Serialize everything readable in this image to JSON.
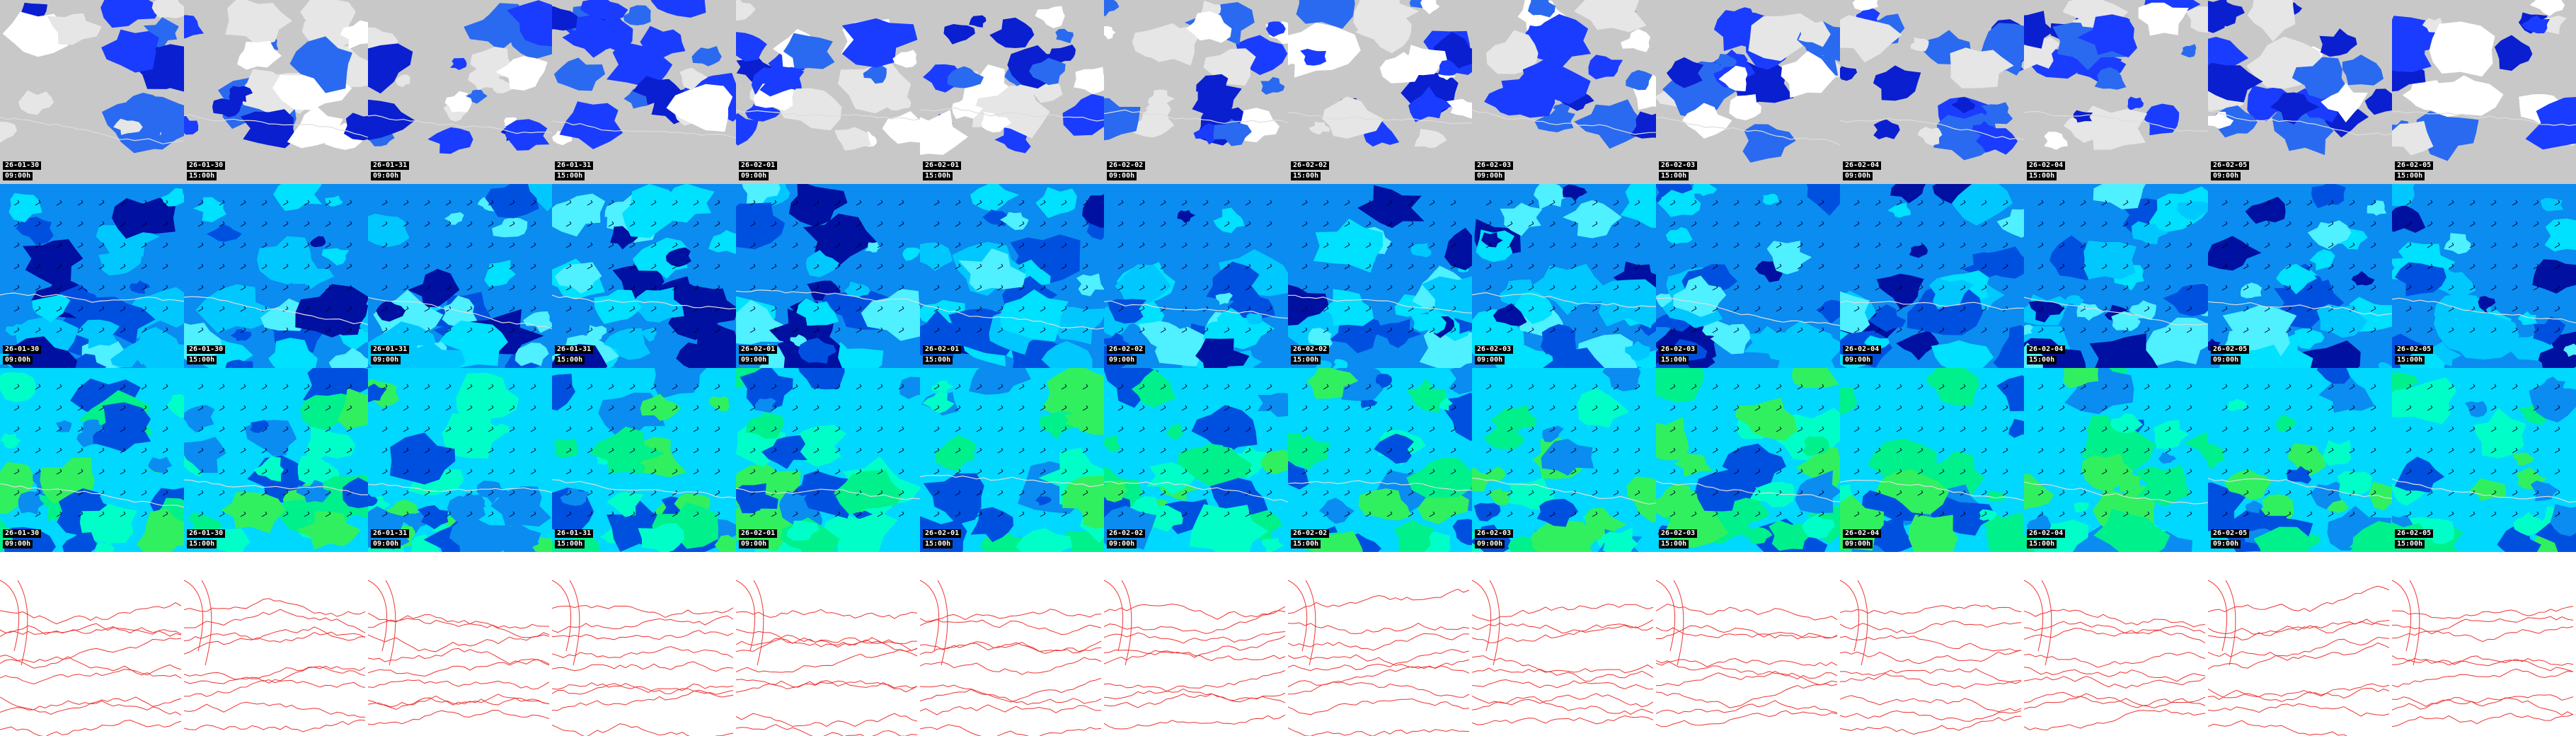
{
  "frames": [
    {
      "date": "26-01-30",
      "time": "09:00h"
    },
    {
      "date": "26-01-30",
      "time": "15:00h"
    },
    {
      "date": "26-01-31",
      "time": "09:00h"
    },
    {
      "date": "26-01-31",
      "time": "15:00h"
    },
    {
      "date": "26-02-01",
      "time": "09:00h"
    },
    {
      "date": "26-02-01",
      "time": "15:00h"
    },
    {
      "date": "26-02-02",
      "time": "09:00h"
    },
    {
      "date": "26-02-02",
      "time": "15:00h"
    },
    {
      "date": "26-02-03",
      "time": "09:00h"
    },
    {
      "date": "26-02-03",
      "time": "15:00h"
    },
    {
      "date": "26-02-04",
      "time": "09:00h"
    },
    {
      "date": "26-02-04",
      "time": "15:00h"
    },
    {
      "date": "26-02-05",
      "time": "09:00h"
    },
    {
      "date": "26-02-05",
      "time": "15:00h"
    }
  ]
}
